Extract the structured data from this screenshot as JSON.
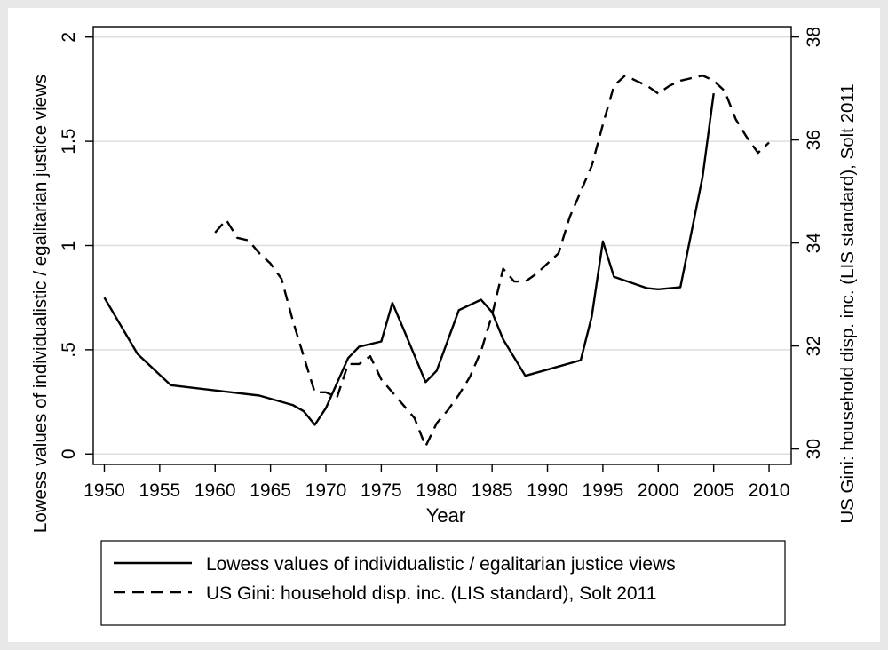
{
  "chart_data": {
    "type": "line",
    "xlabel": "Year",
    "ylabel_left": "Lowess values of individualistic / egalitarian justice views",
    "ylabel_right": "US Gini: household disp. inc. (LIS standard), Solt 2011",
    "xlim": [
      1949,
      2012
    ],
    "ylim_left": [
      -0.05,
      2.05
    ],
    "ylim_right": [
      29.7,
      38.2
    ],
    "x_ticks": [
      1950,
      1955,
      1960,
      1965,
      1970,
      1975,
      1980,
      1985,
      1990,
      1995,
      2000,
      2005,
      2010
    ],
    "x_tick_labels": [
      "1950",
      "1955",
      "1960",
      "1965",
      "1970",
      "1975",
      "1980",
      "1985",
      "1990",
      "1995",
      "2000",
      "2005",
      "2010"
    ],
    "y_left_ticks": [
      0,
      0.5,
      1,
      1.5,
      2
    ],
    "y_left_tick_labels": [
      "0",
      ".5",
      "1",
      "1.5",
      "2"
    ],
    "y_right_ticks": [
      30,
      32,
      34,
      36,
      38
    ],
    "y_right_tick_labels": [
      "30",
      "32",
      "34",
      "36",
      "38"
    ],
    "grid": "horizontal",
    "legend_position": "bottom",
    "series": [
      {
        "name": "Lowess values of individualistic / egalitarian justice views",
        "axis": "left",
        "style": "solid",
        "color": "#000000",
        "x": [
          1950,
          1953,
          1956,
          1964,
          1967,
          1968,
          1969,
          1970,
          1972,
          1973,
          1975,
          1976,
          1977,
          1979,
          1980,
          1982,
          1984,
          1985,
          1986,
          1988,
          1991,
          1993,
          1994,
          1995,
          1996,
          1999,
          2000,
          2002,
          2004,
          2005
        ],
        "y": [
          0.75,
          0.48,
          0.33,
          0.28,
          0.235,
          0.205,
          0.14,
          0.22,
          0.46,
          0.515,
          0.54,
          0.725,
          0.6,
          0.345,
          0.4,
          0.69,
          0.74,
          0.68,
          0.55,
          0.375,
          0.42,
          0.45,
          0.66,
          1.02,
          0.85,
          0.795,
          0.79,
          0.8,
          1.33,
          1.73
        ]
      },
      {
        "name": "US Gini: household disp. inc. (LIS standard), Solt 2011",
        "axis": "right",
        "style": "dashed",
        "color": "#000000",
        "x": [
          1960,
          1961,
          1962,
          1963,
          1964,
          1965,
          1966,
          1967,
          1968,
          1969,
          1970,
          1971,
          1972,
          1973,
          1974,
          1975,
          1976,
          1977,
          1978,
          1979,
          1980,
          1981,
          1982,
          1983,
          1984,
          1985,
          1986,
          1987,
          1988,
          1989,
          1990,
          1991,
          1992,
          1993,
          1994,
          1995,
          1996,
          1997,
          1998,
          1999,
          2000,
          2001,
          2002,
          2003,
          2004,
          2005,
          2006,
          2007,
          2008,
          2009,
          2010
        ],
        "y": [
          34.2,
          34.45,
          34.1,
          34.05,
          33.8,
          33.6,
          33.3,
          32.5,
          31.8,
          31.1,
          31.1,
          31.0,
          31.65,
          31.65,
          31.8,
          31.35,
          31.1,
          30.85,
          30.6,
          30.05,
          30.5,
          30.75,
          31.05,
          31.4,
          31.9,
          32.6,
          33.5,
          33.25,
          33.25,
          33.4,
          33.6,
          33.8,
          34.5,
          35.0,
          35.5,
          36.3,
          37.05,
          37.25,
          37.15,
          37.05,
          36.9,
          37.05,
          37.15,
          37.2,
          37.25,
          37.15,
          36.95,
          36.4,
          36.05,
          35.75,
          35.95
        ]
      }
    ],
    "legend": [
      "Lowess values of individualistic / egalitarian justice views",
      "US Gini: household disp. inc. (LIS standard), Solt 2011"
    ]
  }
}
